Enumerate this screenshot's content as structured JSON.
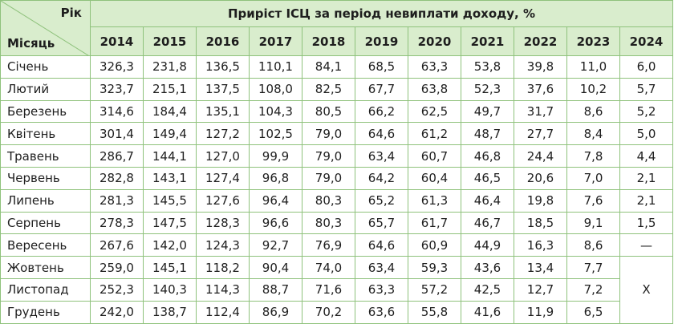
{
  "table": {
    "corner_top": "Рік",
    "corner_bottom": "Місяць",
    "title": "Приріст ІСЦ за період невиплати доходу, %",
    "years": [
      "2014",
      "2015",
      "2016",
      "2017",
      "2018",
      "2019",
      "2020",
      "2021",
      "2022",
      "2023",
      "2024"
    ],
    "rows": [
      {
        "month": "Січень",
        "values": [
          "326,3",
          "231,8",
          "136,5",
          "110,1",
          "84,1",
          "68,5",
          "63,3",
          "53,8",
          "39,8",
          "11,0",
          "6,0"
        ]
      },
      {
        "month": "Лютий",
        "values": [
          "323,7",
          "215,1",
          "137,5",
          "108,0",
          "82,5",
          "67,7",
          "63,8",
          "52,3",
          "37,6",
          "10,2",
          "5,7"
        ]
      },
      {
        "month": "Березень",
        "values": [
          "314,6",
          "184,4",
          "135,1",
          "104,3",
          "80,5",
          "66,2",
          "62,5",
          "49,7",
          "31,7",
          "8,6",
          "5,2"
        ]
      },
      {
        "month": "Квітень",
        "values": [
          "301,4",
          "149,4",
          "127,2",
          "102,5",
          "79,0",
          "64,6",
          "61,2",
          "48,7",
          "27,7",
          "8,4",
          "5,0"
        ]
      },
      {
        "month": "Травень",
        "values": [
          "286,7",
          "144,1",
          "127,0",
          "99,9",
          "79,0",
          "63,4",
          "60,7",
          "46,8",
          "24,4",
          "7,8",
          "4,4"
        ]
      },
      {
        "month": "Червень",
        "values": [
          "282,8",
          "143,1",
          "127,4",
          "96,8",
          "79,0",
          "64,2",
          "60,4",
          "46,5",
          "20,6",
          "7,0",
          "2,1"
        ]
      },
      {
        "month": "Липень",
        "values": [
          "281,3",
          "145,5",
          "127,6",
          "96,4",
          "80,3",
          "65,2",
          "61,3",
          "46,4",
          "19,8",
          "7,6",
          "2,1"
        ]
      },
      {
        "month": "Серпень",
        "values": [
          "278,3",
          "147,5",
          "128,3",
          "96,6",
          "80,3",
          "65,7",
          "61,7",
          "46,7",
          "18,5",
          "9,1",
          "1,5"
        ]
      },
      {
        "month": "Вересень",
        "values": [
          "267,6",
          "142,0",
          "124,3",
          "92,7",
          "76,9",
          "64,6",
          "60,9",
          "44,9",
          "16,3",
          "8,6",
          "—"
        ]
      },
      {
        "month": "Жовтень",
        "values": [
          "259,0",
          "145,1",
          "118,2",
          "90,4",
          "74,0",
          "63,4",
          "59,3",
          "43,6",
          "13,4",
          "7,7"
        ]
      },
      {
        "month": "Листопад",
        "values": [
          "252,3",
          "140,3",
          "114,3",
          "88,7",
          "71,6",
          "63,3",
          "57,2",
          "42,5",
          "12,7",
          "7,2"
        ]
      },
      {
        "month": "Грудень",
        "values": [
          "242,0",
          "138,7",
          "112,4",
          "86,9",
          "70,2",
          "63,6",
          "55,8",
          "41,6",
          "11,9",
          "6,5"
        ]
      }
    ],
    "merged_mark": "Х"
  }
}
